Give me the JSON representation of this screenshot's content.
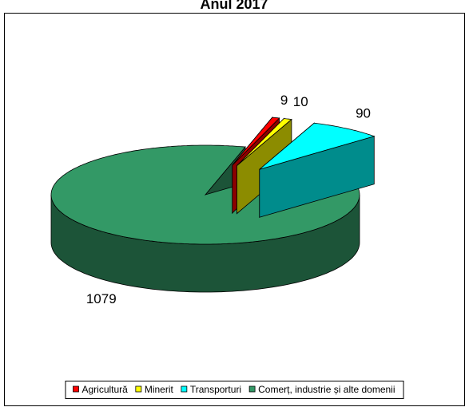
{
  "chart_data": {
    "type": "pie",
    "title": "Anul 2017",
    "categories": [
      "Agricultură",
      "Minerit",
      "Transporturi",
      "Comerț, industrie și alte domenii"
    ],
    "values": [
      9,
      10,
      90,
      1079
    ],
    "colors": [
      "#ff0000",
      "#ffff00",
      "#00ffff",
      "#339966"
    ],
    "legend": "bottom"
  }
}
